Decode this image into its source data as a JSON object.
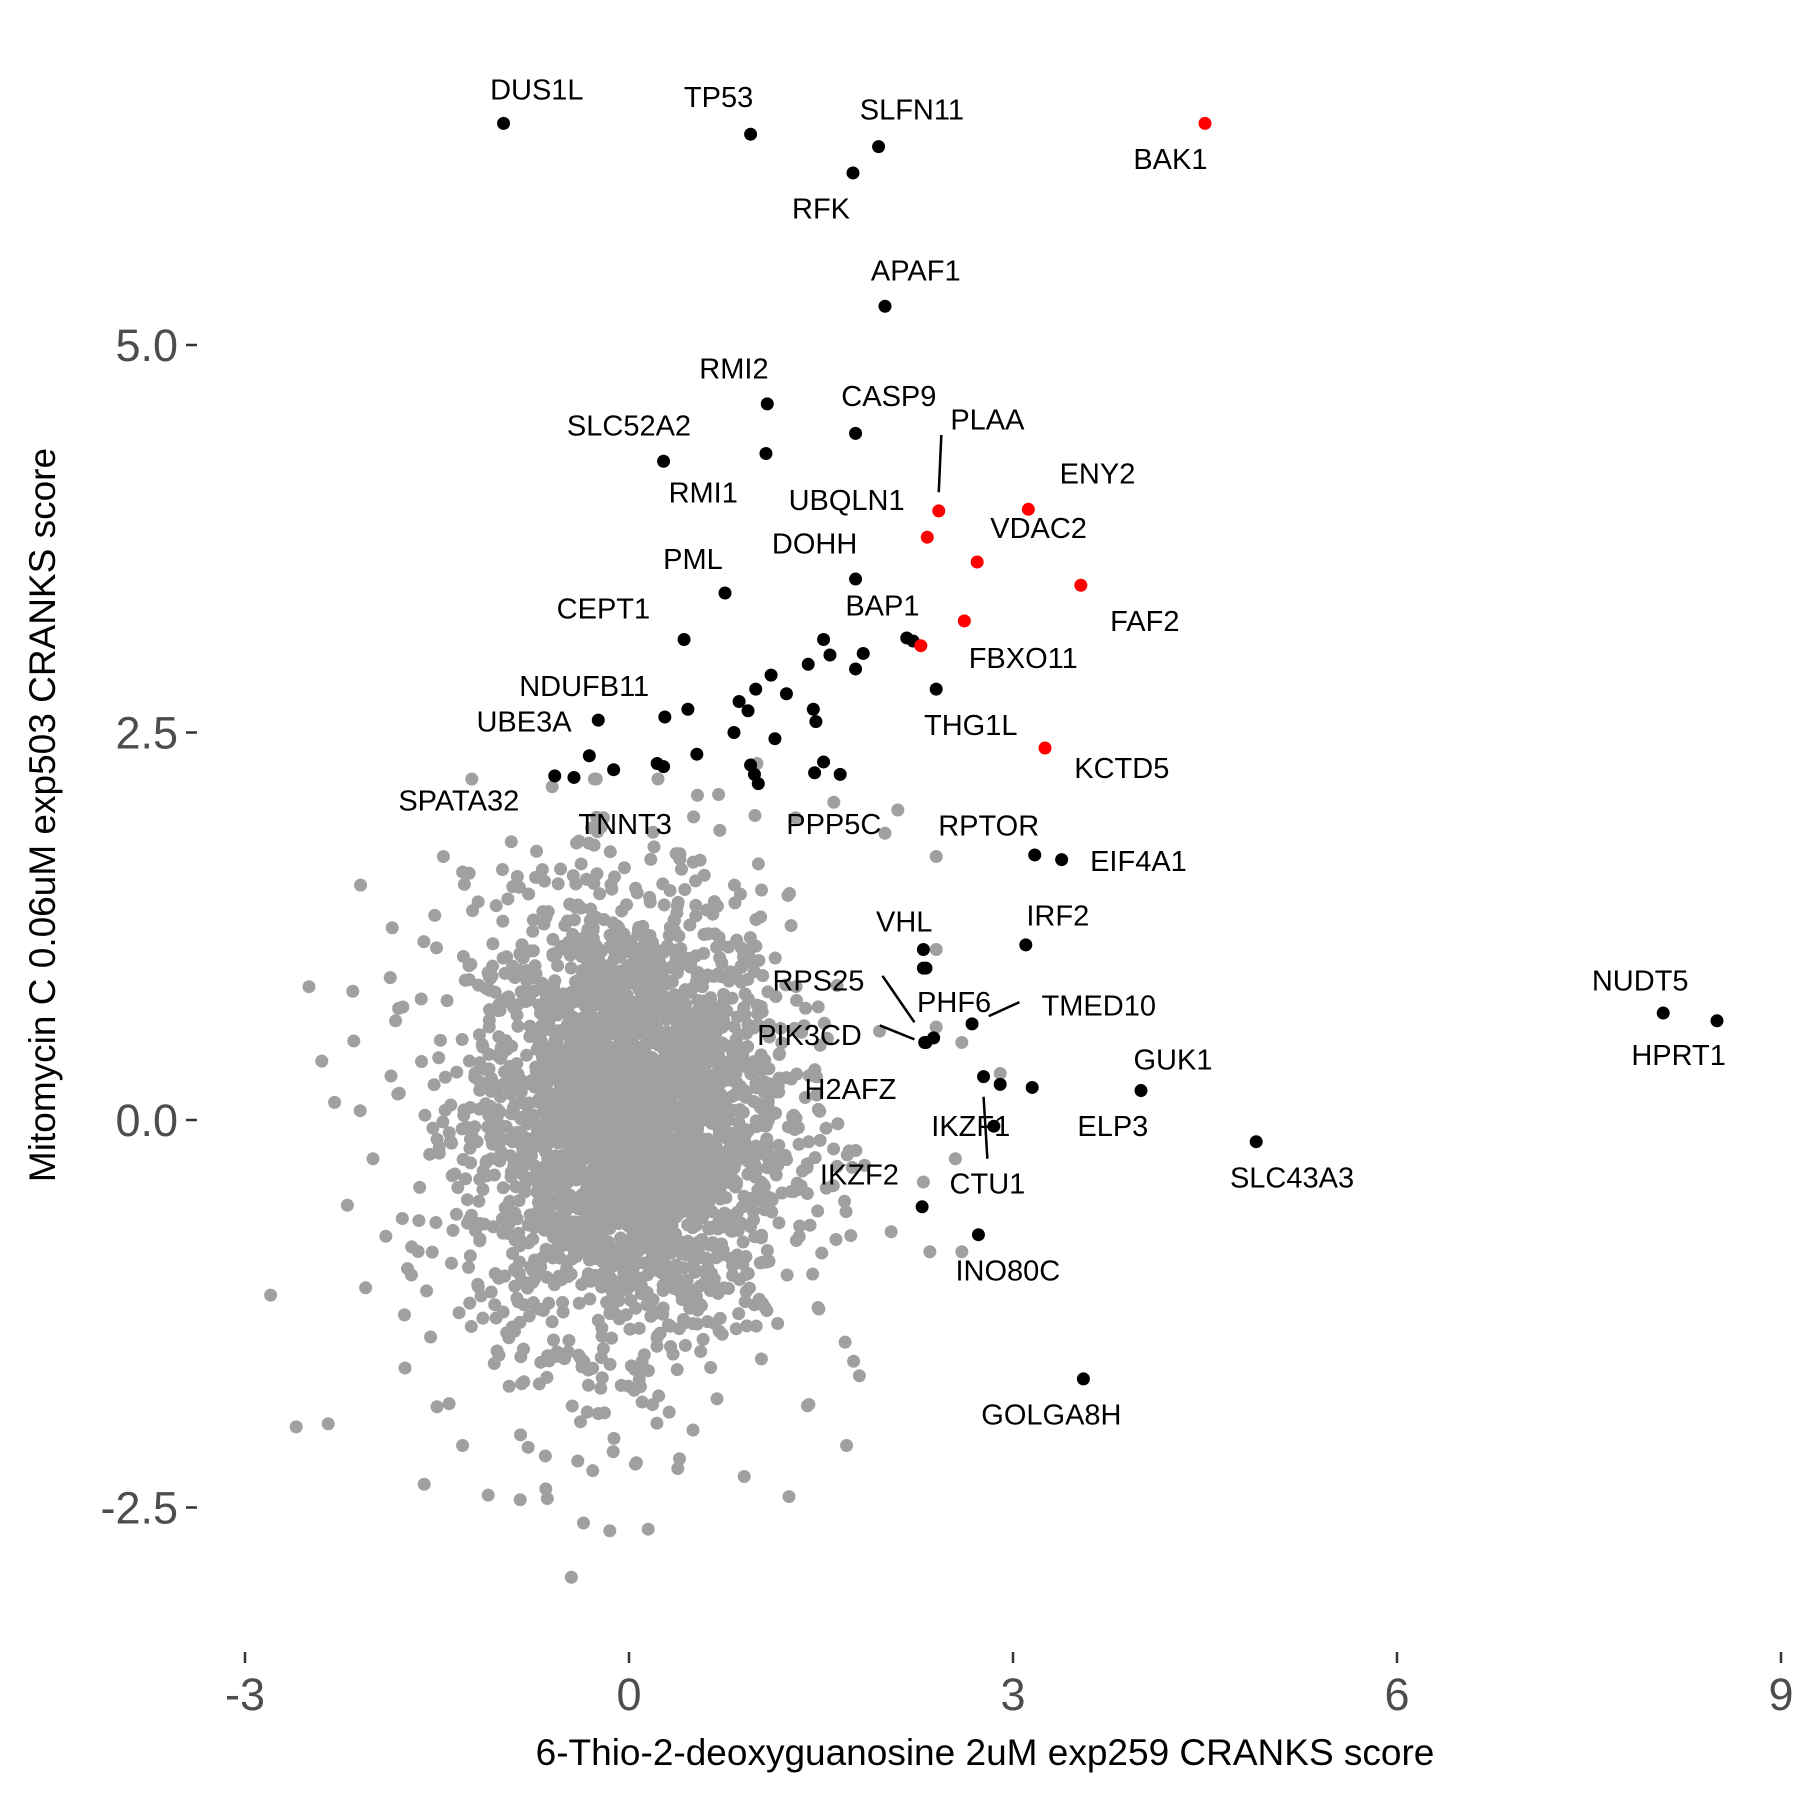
{
  "chart_data": {
    "type": "scatter",
    "xlabel": "6-Thio-2-deoxyguanosine 2uM exp259 CRANKS score",
    "ylabel": "Mitomycin C 0.06uM exp503 CRANKS score",
    "xlim": [
      -3,
      9
    ],
    "ylim": [
      -3.4,
      6.8
    ],
    "x_ticks": [
      -3,
      0,
      3,
      6,
      9
    ],
    "x_tick_labels": [
      "-3",
      "0",
      "3",
      "6",
      "9"
    ],
    "y_ticks": [
      -2.5,
      0,
      2.5,
      5
    ],
    "y_tick_labels": [
      "-2.5",
      "0.0",
      "2.5",
      "5.0"
    ],
    "grid": false,
    "colors": {
      "background_points": "#a0a0a0",
      "highlight": "#000000",
      "red_highlight": "#ff0000"
    },
    "background_cloud": {
      "description_center": [
        0,
        0
      ],
      "approx_count": 3000,
      "outliers": [
        [
          -2.8,
          -1.13
        ],
        [
          -2.6,
          -1.98
        ],
        [
          -2.35,
          -1.96
        ],
        [
          -2.5,
          0.86
        ],
        [
          -2.4,
          0.38
        ],
        [
          -2.15,
          0.51
        ],
        [
          -2.1,
          0.06
        ],
        [
          -2.0,
          -0.25
        ],
        [
          -1.9,
          -0.75
        ],
        [
          -1.85,
          1.24
        ],
        [
          -1.8,
          0.72
        ],
        [
          -1.75,
          -1.6
        ],
        [
          -1.6,
          -2.35
        ],
        [
          -1.5,
          -1.85
        ],
        [
          -1.45,
          1.7
        ],
        [
          -1.3,
          -2.1
        ],
        [
          -1.1,
          -2.42
        ],
        [
          -0.85,
          -2.45
        ],
        [
          -0.65,
          -2.38
        ],
        [
          -0.4,
          -2.2
        ],
        [
          -0.45,
          -2.95
        ],
        [
          -0.15,
          -2.65
        ],
        [
          0.15,
          -2.64
        ],
        [
          0.05,
          -2.22
        ],
        [
          0.9,
          -2.3
        ],
        [
          1.25,
          -2.43
        ],
        [
          1.7,
          -2.1
        ],
        [
          2.3,
          -0.4
        ],
        [
          2.35,
          -0.85
        ],
        [
          2.6,
          -0.85
        ],
        [
          2.4,
          0.6
        ],
        [
          2.6,
          0.5
        ],
        [
          2.4,
          1.1
        ],
        [
          2.4,
          1.7
        ],
        [
          2.0,
          1.85
        ],
        [
          2.1,
          2.0
        ],
        [
          -0.2,
          1.95
        ],
        [
          -0.6,
          2.15
        ],
        [
          0.7,
          2.1
        ],
        [
          1.0,
          2.3
        ],
        [
          1.3,
          1.95
        ],
        [
          1.6,
          2.05
        ],
        [
          -1.3,
          1.6
        ],
        [
          -1.7,
          -1.0
        ],
        [
          2.55,
          -0.25
        ],
        [
          2.9,
          0.3
        ],
        [
          -2.2,
          -0.55
        ],
        [
          -1.55,
          -1.4
        ],
        [
          1.8,
          -1.65
        ],
        [
          0.5,
          -2.0
        ]
      ]
    },
    "points": [
      {
        "label": "DUS1L",
        "x": -0.98,
        "y": 6.43,
        "color": "black"
      },
      {
        "label": "TP53",
        "x": 0.95,
        "y": 6.36,
        "color": "black"
      },
      {
        "label": "SLFN11",
        "x": 1.95,
        "y": 6.28,
        "color": "black"
      },
      {
        "label": "RFK",
        "x": 1.75,
        "y": 6.11,
        "color": "black"
      },
      {
        "label": "BAK1",
        "x": 4.5,
        "y": 6.43,
        "color": "red"
      },
      {
        "label": "APAF1",
        "x": 2.0,
        "y": 5.25,
        "color": "black"
      },
      {
        "label": "RMI2",
        "x": 1.08,
        "y": 4.62,
        "color": "black"
      },
      {
        "label": "CASP9",
        "x": 1.77,
        "y": 4.43,
        "color": "black"
      },
      {
        "label": "SLC52A2",
        "x": 0.27,
        "y": 4.25,
        "color": "black"
      },
      {
        "label": "RMI1",
        "x": 1.07,
        "y": 4.3,
        "color": "black"
      },
      {
        "label": "PLAA",
        "x": 2.42,
        "y": 3.93,
        "color": "red"
      },
      {
        "label": "UBQLN1",
        "x": 2.33,
        "y": 3.76,
        "color": "red"
      },
      {
        "label": "ENY2",
        "x": 3.12,
        "y": 3.94,
        "color": "red"
      },
      {
        "label": "VDAC2",
        "x": 2.72,
        "y": 3.6,
        "color": "red"
      },
      {
        "label": "FAF2",
        "x": 3.53,
        "y": 3.45,
        "color": "red"
      },
      {
        "label": "DOHH",
        "x": 1.77,
        "y": 3.49,
        "color": "black"
      },
      {
        "label": "PML",
        "x": 0.75,
        "y": 3.4,
        "color": "black"
      },
      {
        "label": "CEPT1",
        "x": 0.43,
        "y": 3.1,
        "color": "black"
      },
      {
        "label": "BAP1",
        "x": 2.28,
        "y": 3.06,
        "color": "red"
      },
      {
        "label": "FBXO11",
        "x": 2.62,
        "y": 3.22,
        "color": "red"
      },
      {
        "label": "NDUFB11",
        "x": -0.24,
        "y": 2.58,
        "color": "black"
      },
      {
        "label": "THG1L",
        "x": 2.4,
        "y": 2.78,
        "color": "black"
      },
      {
        "label": "KCTD5",
        "x": 3.25,
        "y": 2.4,
        "color": "red"
      },
      {
        "label": "UBE3A",
        "x": -0.31,
        "y": 2.35,
        "color": "black"
      },
      {
        "label": "SPATA32",
        "x": -0.58,
        "y": 2.22,
        "color": "black"
      },
      {
        "label": "TNNT3",
        "x": -0.43,
        "y": 2.21,
        "color": "black"
      },
      {
        "label": "PPP5C",
        "x": 1.45,
        "y": 2.24,
        "color": "black"
      },
      {
        "label": "RPTOR",
        "x": 3.17,
        "y": 1.71,
        "color": "black"
      },
      {
        "label": "EIF4A1",
        "x": 3.38,
        "y": 1.68,
        "color": "black"
      },
      {
        "label": "IRF2",
        "x": 3.1,
        "y": 1.13,
        "color": "black"
      },
      {
        "label": "VHL",
        "x": 2.3,
        "y": 1.1,
        "color": "black"
      },
      {
        "label": "RPS25",
        "x": 2.32,
        "y": 0.98,
        "color": "black"
      },
      {
        "label": "PHF6",
        "x": 2.38,
        "y": 0.53,
        "color": "black"
      },
      {
        "label": "TMED10",
        "x": 2.68,
        "y": 0.62,
        "color": "black"
      },
      {
        "label": "PIK3CD",
        "x": 2.32,
        "y": 0.5,
        "color": "black"
      },
      {
        "label": "NUDT5",
        "x": 8.08,
        "y": 0.69,
        "color": "black"
      },
      {
        "label": "HPRT1",
        "x": 8.5,
        "y": 0.64,
        "color": "black"
      },
      {
        "label": "GUK1",
        "x": 4.0,
        "y": 0.19,
        "color": "black"
      },
      {
        "label": "H2AFZ",
        "x": 2.77,
        "y": 0.28,
        "color": "black"
      },
      {
        "label": "IKZF1",
        "x": 2.9,
        "y": 0.23,
        "color": "black"
      },
      {
        "label": "ELP3",
        "x": 3.15,
        "y": 0.21,
        "color": "black"
      },
      {
        "label": "SLC43A3",
        "x": 4.9,
        "y": -0.14,
        "color": "black"
      },
      {
        "label": "IKZF2",
        "x": 2.29,
        "y": -0.56,
        "color": "black"
      },
      {
        "label": "CTU1",
        "x": 2.85,
        "y": -0.04,
        "color": "black"
      },
      {
        "label": "INO80C",
        "x": 2.73,
        "y": -0.74,
        "color": "black"
      },
      {
        "label": "GOLGA8H",
        "x": 3.55,
        "y": -1.67,
        "color": "black"
      }
    ],
    "unlabeled_points": [
      {
        "x": 1.52,
        "y": 3.1,
        "color": "black"
      },
      {
        "x": 1.57,
        "y": 3.0,
        "color": "black"
      },
      {
        "x": 1.83,
        "y": 3.01,
        "color": "black"
      },
      {
        "x": 2.17,
        "y": 3.11,
        "color": "black"
      },
      {
        "x": 2.22,
        "y": 3.09,
        "color": "black"
      },
      {
        "x": 1.77,
        "y": 2.91,
        "color": "black"
      },
      {
        "x": 1.4,
        "y": 2.94,
        "color": "black"
      },
      {
        "x": 1.11,
        "y": 2.87,
        "color": "black"
      },
      {
        "x": 0.99,
        "y": 2.78,
        "color": "black"
      },
      {
        "x": 1.23,
        "y": 2.75,
        "color": "black"
      },
      {
        "x": 0.86,
        "y": 2.7,
        "color": "black"
      },
      {
        "x": 0.93,
        "y": 2.64,
        "color": "black"
      },
      {
        "x": 0.46,
        "y": 2.65,
        "color": "black"
      },
      {
        "x": 0.28,
        "y": 2.6,
        "color": "black"
      },
      {
        "x": 1.44,
        "y": 2.65,
        "color": "black"
      },
      {
        "x": 1.46,
        "y": 2.57,
        "color": "black"
      },
      {
        "x": 0.82,
        "y": 2.5,
        "color": "black"
      },
      {
        "x": 1.14,
        "y": 2.46,
        "color": "black"
      },
      {
        "x": 0.53,
        "y": 2.36,
        "color": "black"
      },
      {
        "x": 0.95,
        "y": 2.29,
        "color": "black"
      },
      {
        "x": 0.98,
        "y": 2.23,
        "color": "black"
      },
      {
        "x": 0.22,
        "y": 2.3,
        "color": "black"
      },
      {
        "x": 0.27,
        "y": 2.28,
        "color": "black"
      },
      {
        "x": -0.12,
        "y": 2.26,
        "color": "black"
      },
      {
        "x": 1.01,
        "y": 2.17,
        "color": "black"
      },
      {
        "x": 1.65,
        "y": 2.23,
        "color": "black"
      },
      {
        "x": 1.52,
        "y": 2.31,
        "color": "black"
      },
      {
        "x": 2.3,
        "y": 0.98,
        "color": "black"
      },
      {
        "x": 2.31,
        "y": 0.5,
        "color": "black"
      }
    ],
    "connectors": [
      {
        "label": "PLAA",
        "from": [
          2.44,
          4.42
        ],
        "to": [
          2.42,
          4.05
        ]
      },
      {
        "label": "RPS25",
        "from": [
          1.98,
          0.93
        ],
        "to": [
          2.23,
          0.63
        ]
      },
      {
        "label": "PIK3CD",
        "from": [
          1.96,
          0.61
        ],
        "to": [
          2.23,
          0.52
        ]
      },
      {
        "label": "TMED10",
        "from": [
          3.05,
          0.76
        ],
        "to": [
          2.81,
          0.67
        ]
      },
      {
        "label": "IKZF1",
        "from": [
          2.77,
          0.15
        ],
        "to": [
          2.8,
          -0.25
        ]
      }
    ],
    "label_positions": [
      {
        "label": "DUS1L",
        "x": -0.72,
        "y": 6.65
      },
      {
        "label": "TP53",
        "x": 0.7,
        "y": 6.6
      },
      {
        "label": "SLFN11",
        "x": 2.21,
        "y": 6.52
      },
      {
        "label": "RFK",
        "x": 1.5,
        "y": 5.88
      },
      {
        "label": "BAK1",
        "x": 4.23,
        "y": 6.2
      },
      {
        "label": "APAF1",
        "x": 2.24,
        "y": 5.48
      },
      {
        "label": "RMI2",
        "x": 0.82,
        "y": 4.85
      },
      {
        "label": "CASP9",
        "x": 2.03,
        "y": 4.67
      },
      {
        "label": "SLC52A2",
        "x": 0.0,
        "y": 4.48
      },
      {
        "label": "RMI1",
        "x": 0.58,
        "y": 4.05
      },
      {
        "label": "PLAA",
        "x": 2.8,
        "y": 4.52
      },
      {
        "label": "UBQLN1",
        "x": 1.7,
        "y": 4.0
      },
      {
        "label": "ENY2",
        "x": 3.66,
        "y": 4.17
      },
      {
        "label": "VDAC2",
        "x": 3.2,
        "y": 3.82
      },
      {
        "label": "FAF2",
        "x": 4.03,
        "y": 3.22
      },
      {
        "label": "DOHH",
        "x": 1.45,
        "y": 3.72
      },
      {
        "label": "PML",
        "x": 0.5,
        "y": 3.62
      },
      {
        "label": "CEPT1",
        "x": -0.2,
        "y": 3.3
      },
      {
        "label": "BAP1",
        "x": 1.98,
        "y": 3.32
      },
      {
        "label": "FBXO11",
        "x": 3.08,
        "y": 2.98
      },
      {
        "label": "NDUFB11",
        "x": -0.35,
        "y": 2.8
      },
      {
        "label": "THG1L",
        "x": 2.67,
        "y": 2.55
      },
      {
        "label": "KCTD5",
        "x": 3.85,
        "y": 2.27
      },
      {
        "label": "UBE3A",
        "x": -0.82,
        "y": 2.57
      },
      {
        "label": "SPATA32",
        "x": -1.33,
        "y": 2.06
      },
      {
        "label": "TNNT3",
        "x": -0.03,
        "y": 1.91
      },
      {
        "label": "PPP5C",
        "x": 1.6,
        "y": 1.91
      },
      {
        "label": "RPTOR",
        "x": 2.81,
        "y": 1.9
      },
      {
        "label": "EIF4A1",
        "x": 3.98,
        "y": 1.67
      },
      {
        "label": "IRF2",
        "x": 3.35,
        "y": 1.32
      },
      {
        "label": "VHL",
        "x": 2.15,
        "y": 1.28
      },
      {
        "label": "RPS25",
        "x": 1.48,
        "y": 0.9
      },
      {
        "label": "PHF6",
        "x": 2.54,
        "y": 0.76
      },
      {
        "label": "TMED10",
        "x": 3.67,
        "y": 0.74
      },
      {
        "label": "PIK3CD",
        "x": 1.41,
        "y": 0.55
      },
      {
        "label": "NUDT5",
        "x": 7.9,
        "y": 0.9
      },
      {
        "label": "HPRT1",
        "x": 8.2,
        "y": 0.42
      },
      {
        "label": "GUK1",
        "x": 4.25,
        "y": 0.39
      },
      {
        "label": "H2AFZ",
        "x": 1.73,
        "y": 0.2
      },
      {
        "label": "IKZF1",
        "x": 2.67,
        "y": -0.04
      },
      {
        "label": "ELP3",
        "x": 3.78,
        "y": -0.04
      },
      {
        "label": "SLC43A3",
        "x": 5.18,
        "y": -0.37
      },
      {
        "label": "IKZF2",
        "x": 1.8,
        "y": -0.35
      },
      {
        "label": "CTU1",
        "x": 2.8,
        "y": -0.41
      },
      {
        "label": "INO80C",
        "x": 2.96,
        "y": -0.97
      },
      {
        "label": "GOLGA8H",
        "x": 3.3,
        "y": -1.9
      }
    ]
  }
}
